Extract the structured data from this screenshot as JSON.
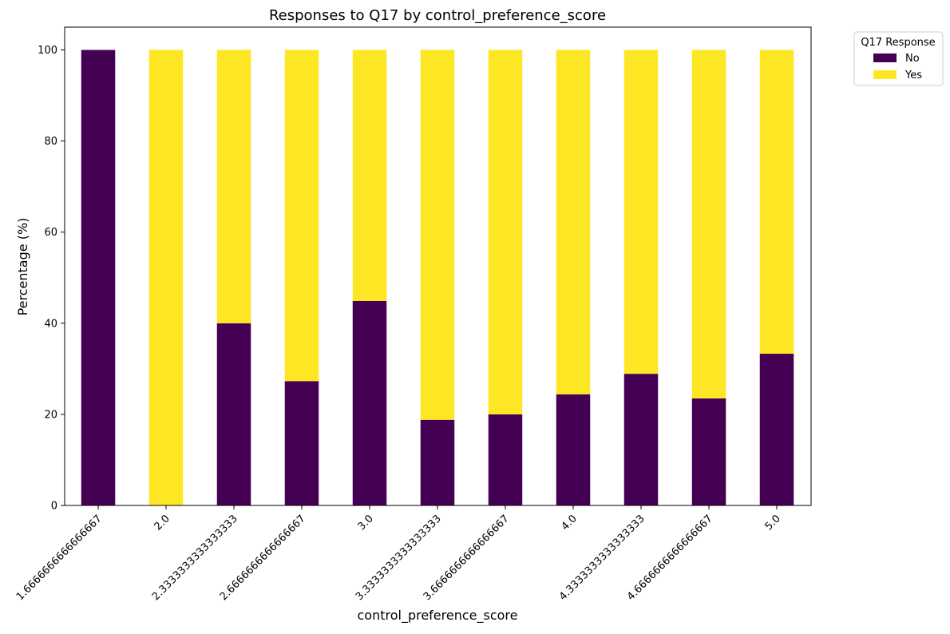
{
  "chart_data": {
    "type": "bar",
    "stacked": true,
    "title": "Responses to Q17 by control_preference_score",
    "xlabel": "control_preference_score",
    "ylabel": "Percentage (%)",
    "ylim": [
      0,
      105
    ],
    "yticks": [
      0,
      20,
      40,
      60,
      80,
      100
    ],
    "grid": false,
    "legend_title": "Q17 Response",
    "legend_position": "upper right, outside plot",
    "categories": [
      "1.6666666666666667",
      "2.0",
      "2.3333333333333333",
      "2.6666666666666667",
      "3.0",
      "3.3333333333333333",
      "3.6666666666666667",
      "4.0",
      "4.3333333333333333",
      "4.6666666666666667",
      "5.0"
    ],
    "series": [
      {
        "name": "No",
        "color": "#440154",
        "values": [
          100,
          0,
          40.0,
          27.3,
          44.9,
          18.8,
          20.0,
          24.4,
          28.9,
          23.5,
          33.3
        ]
      },
      {
        "name": "Yes",
        "color": "#fde725",
        "values": [
          0,
          100,
          60.0,
          72.7,
          55.1,
          81.2,
          80.0,
          75.6,
          71.1,
          76.5,
          66.7
        ]
      }
    ]
  }
}
